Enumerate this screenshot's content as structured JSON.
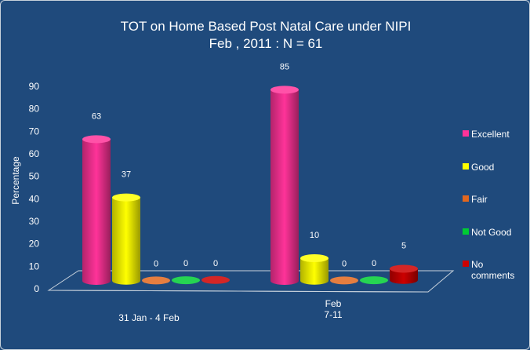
{
  "chart_data": {
    "type": "bar",
    "title": "TOT on Home Based Post Natal Care under NIPI",
    "subtitle": "Feb , 2011 : N = 61",
    "ylabel": "Percentage",
    "xlabel": "",
    "ylim": [
      0,
      90
    ],
    "yticks": [
      "0",
      "10",
      "20",
      "30",
      "40",
      "50",
      "60",
      "70",
      "80",
      "90"
    ],
    "categories": [
      {
        "lines": [
          "31 Jan - 4 Feb"
        ]
      },
      {
        "lines": [
          "Feb",
          "7-11"
        ]
      }
    ],
    "series": [
      {
        "name": "Excellent",
        "color": "#ff3399",
        "values": [
          63,
          85
        ]
      },
      {
        "name": "Good",
        "color": "#ffff00",
        "values": [
          37,
          10
        ]
      },
      {
        "name": "Fair",
        "color": "#e2671e",
        "values": [
          0,
          0
        ]
      },
      {
        "name": "Not Good",
        "color": "#00cc33",
        "values": [
          0,
          0
        ]
      },
      {
        "name": "No comments",
        "color": "#cc0000",
        "values": [
          0,
          5
        ]
      }
    ],
    "legend": {
      "position": "right"
    }
  }
}
